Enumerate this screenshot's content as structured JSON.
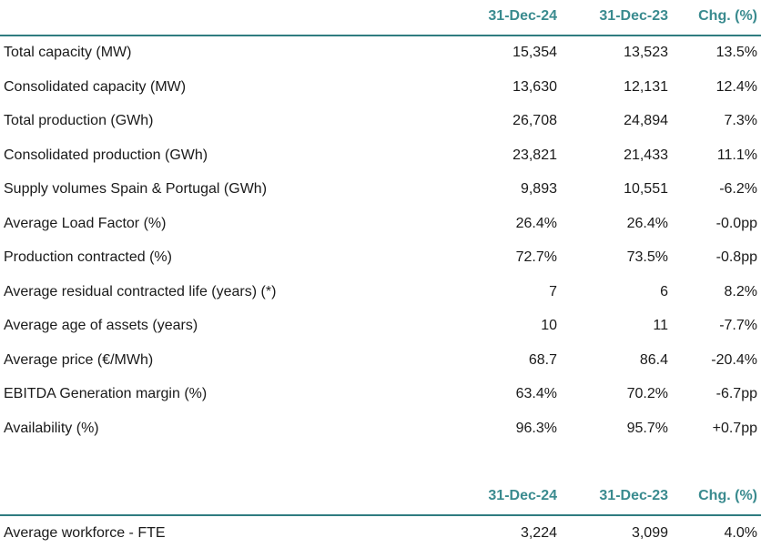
{
  "table1": {
    "headers": [
      "31-Dec-24",
      "31-Dec-23",
      "Chg. (%)"
    ],
    "rows": [
      {
        "label": "Total capacity (MW)",
        "v1": "15,354",
        "v2": "13,523",
        "chg": "13.5%"
      },
      {
        "label": "Consolidated capacity (MW)",
        "v1": "13,630",
        "v2": "12,131",
        "chg": "12.4%"
      },
      {
        "label": "Total production (GWh)",
        "v1": "26,708",
        "v2": "24,894",
        "chg": "7.3%"
      },
      {
        "label": "Consolidated production (GWh)",
        "v1": "23,821",
        "v2": "21,433",
        "chg": "11.1%"
      },
      {
        "label": "Supply volumes Spain & Portugal (GWh)",
        "v1": "9,893",
        "v2": "10,551",
        "chg": "-6.2%"
      },
      {
        "label": "Average Load Factor (%)",
        "v1": "26.4%",
        "v2": "26.4%",
        "chg": "-0.0pp"
      },
      {
        "label": "Production contracted (%)",
        "v1": "72.7%",
        "v2": "73.5%",
        "chg": "-0.8pp"
      },
      {
        "label": "Average residual contracted life (years) (*)",
        "v1": "7",
        "v2": "6",
        "chg": "8.2%"
      },
      {
        "label": "Average age of assets (years)",
        "v1": "10",
        "v2": "11",
        "chg": "-7.7%"
      },
      {
        "label": "Average price (€/MWh)",
        "v1": "68.7",
        "v2": "86.4",
        "chg": "-20.4%"
      },
      {
        "label": "EBITDA Generation margin (%)",
        "v1": "63.4%",
        "v2": "70.2%",
        "chg": "-6.7pp"
      },
      {
        "label": "Availability (%)",
        "v1": "96.3%",
        "v2": "95.7%",
        "chg": "+0.7pp"
      }
    ]
  },
  "table2": {
    "headers": [
      "31-Dec-24",
      "31-Dec-23",
      "Chg. (%)"
    ],
    "rows": [
      {
        "label": "Average workforce - FTE",
        "v1": "3,224",
        "v2": "3,099",
        "chg": "4.0%"
      }
    ]
  },
  "colors": {
    "header_text": "#3a8b8f",
    "header_rule": "#2f7c80",
    "body_text": "#1a1a1a"
  }
}
